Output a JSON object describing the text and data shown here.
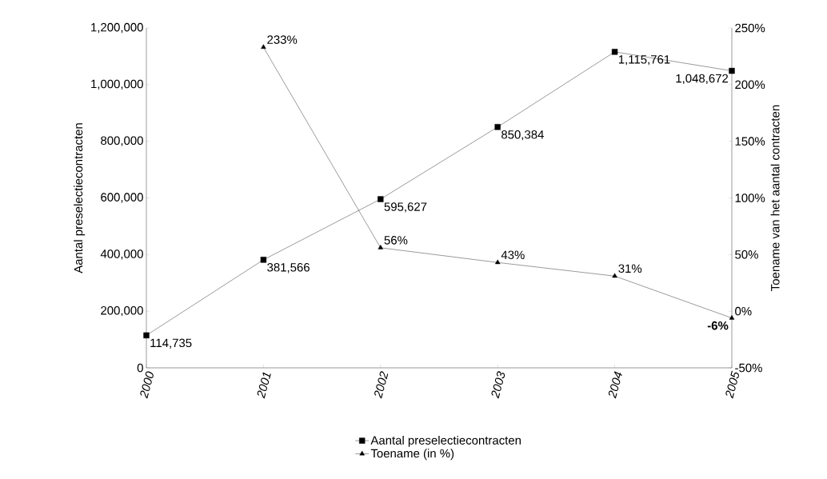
{
  "chart_data": {
    "type": "line",
    "categories": [
      "2000",
      "2001",
      "2002",
      "2003",
      "2004",
      "2005"
    ],
    "ylabel": "Aantal preselectiecontracten",
    "y2label": "Toename van het aantal contracten",
    "ylim": [
      0,
      1200000
    ],
    "yticks": [
      {
        "value": 0,
        "label": "0"
      },
      {
        "value": 200000,
        "label": "200,000"
      },
      {
        "value": 400000,
        "label": "400,000"
      },
      {
        "value": 600000,
        "label": "600,000"
      },
      {
        "value": 800000,
        "label": "800,000"
      },
      {
        "value": 1000000,
        "label": "1,000,000"
      },
      {
        "value": 1200000,
        "label": "1,200,000"
      }
    ],
    "y2lim": [
      -50,
      250
    ],
    "y2ticks": [
      {
        "value": -50,
        "label": "-50%"
      },
      {
        "value": 0,
        "label": "0%"
      },
      {
        "value": 50,
        "label": "50%"
      },
      {
        "value": 100,
        "label": "100%"
      },
      {
        "value": 150,
        "label": "150%"
      },
      {
        "value": 200,
        "label": "200%"
      },
      {
        "value": 250,
        "label": "250%"
      }
    ],
    "grid": false,
    "legend": "bottom",
    "series": [
      {
        "name": "Aantal preselectiecontracten",
        "color": "#000000",
        "marker": "square",
        "values": [
          114735,
          381566,
          595627,
          850384,
          1115761,
          1048672
        ],
        "value_labels": [
          "114,735",
          "381,566",
          "595,627",
          "850,384",
          "1,115,761",
          "1,048,672"
        ]
      },
      {
        "name": "Toename (in %)",
        "color": "#000000",
        "marker": "triangle",
        "axis": "y2",
        "values": [
          null,
          233,
          56,
          43,
          31,
          -6
        ],
        "value_labels": [
          null,
          "233%",
          "56%",
          "43%",
          "31%",
          "**-6%**"
        ]
      }
    ]
  }
}
